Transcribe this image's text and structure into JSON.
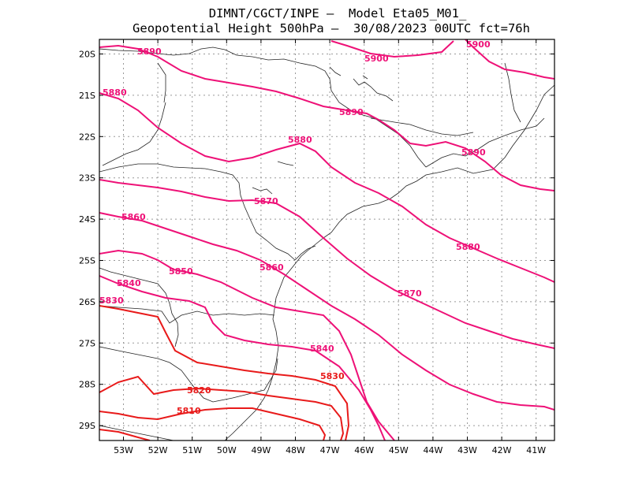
{
  "title_line1": "DIMNT/CGCT/INPE –  Model Eta05_M01_",
  "title_line2": "Geopotential Height 500hPa –  30/08/2023 00UTC fct=76h",
  "axes": {
    "lon_labels": [
      "53W",
      "52W",
      "51W",
      "50W",
      "49W",
      "48W",
      "47W",
      "46W",
      "45W",
      "44W",
      "43W",
      "42W",
      "41W"
    ],
    "lat_labels": [
      "20S",
      "21S",
      "22S",
      "23S",
      "24S",
      "25S",
      "26S",
      "27S",
      "28S",
      "29S"
    ]
  },
  "colors": {
    "pink": "#ee1177",
    "red": "#e81a1a",
    "map": "#222222"
  },
  "contours": [
    {
      "value": "5900",
      "label": "5900"
    },
    {
      "value": "5900b",
      "label": "5900"
    },
    {
      "value": "5890",
      "label": "5890"
    },
    {
      "value": "5890b",
      "label": "5890"
    },
    {
      "value": "5890c",
      "label": "5890"
    },
    {
      "value": "5880",
      "label": "5880"
    },
    {
      "value": "5880b",
      "label": "5880"
    },
    {
      "value": "5880c",
      "label": "5880"
    },
    {
      "value": "5870",
      "label": "5870"
    },
    {
      "value": "5870b",
      "label": "5870"
    },
    {
      "value": "5860",
      "label": "5860"
    },
    {
      "value": "5860b",
      "label": "5860"
    },
    {
      "value": "5850",
      "label": "5850"
    },
    {
      "value": "5840",
      "label": "5840"
    },
    {
      "value": "5840b",
      "label": "5840"
    },
    {
      "value": "5830",
      "label": "5830"
    },
    {
      "value": "5830b",
      "label": "5830"
    },
    {
      "value": "5820",
      "label": "5820"
    },
    {
      "value": "5810",
      "label": "5810"
    }
  ]
}
